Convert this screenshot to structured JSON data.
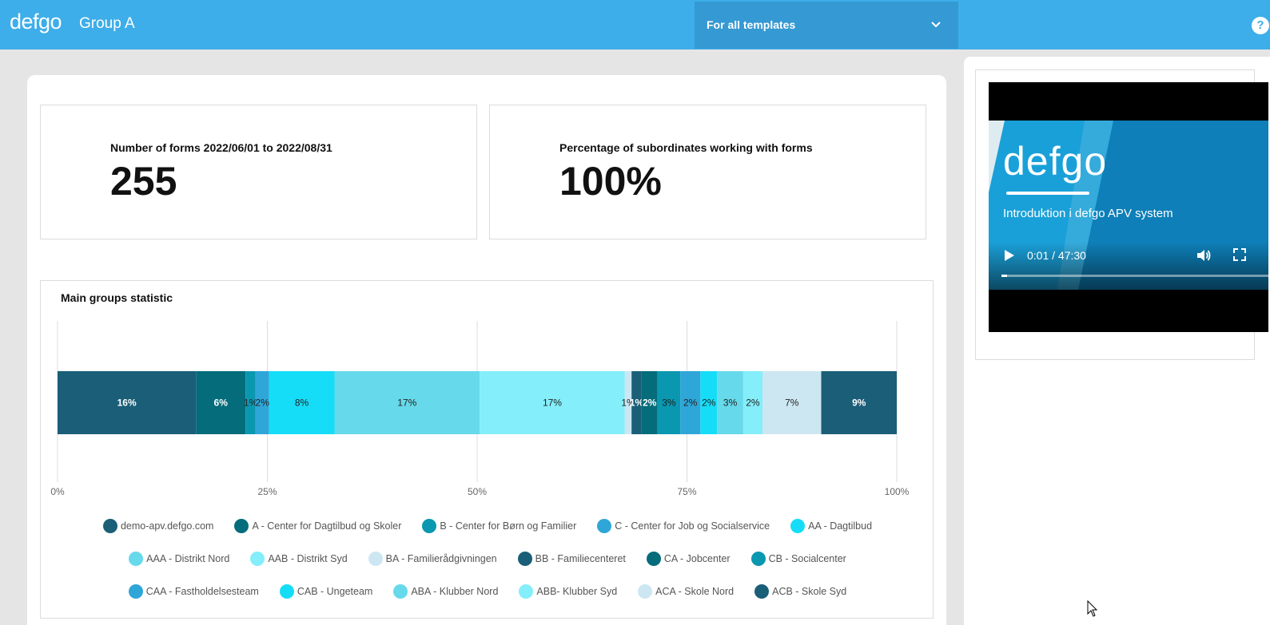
{
  "header": {
    "logo": "defgo",
    "group_title": "Group A",
    "template_select": "For all templates",
    "help": "?"
  },
  "stats": [
    {
      "label": "Number of forms 2022/06/01 to 2022/08/31",
      "value": "255"
    },
    {
      "label": "Percentage of subordinates working with forms",
      "value": "100%"
    }
  ],
  "chart_data": {
    "type": "bar",
    "orientation": "horizontal-stacked",
    "title": "Main groups statistic",
    "xlim": [
      0,
      100
    ],
    "x_ticks": [
      "0%",
      "25%",
      "50%",
      "75%",
      "100%"
    ],
    "grid": true,
    "legend_placement": "bottom",
    "series": [
      {
        "name": "demo-apv.defgo.com",
        "value": 16.5,
        "label": "16%",
        "color": "#1b5e78"
      },
      {
        "name": "A - Center for Dagtilbud og Skoler",
        "value": 5.9,
        "label": "6%",
        "color": "#046c7a"
      },
      {
        "name": "B - Center for Børn og Familier",
        "value": 1.2,
        "label": "1%",
        "color": "#0a97b0"
      },
      {
        "name": "C - Center for Job og Socialservice",
        "value": 1.6,
        "label": "2%",
        "color": "#2fa6d8"
      },
      {
        "name": "AA - Dagtilbud",
        "value": 7.8,
        "label": "8%",
        "color": "#16ddf7"
      },
      {
        "name": "AAA - Distrikt Nord",
        "value": 17.3,
        "label": "17%",
        "color": "#66d9ea"
      },
      {
        "name": "AAB - Distrikt Syd",
        "value": 17.3,
        "label": "17%",
        "color": "#84eefa"
      },
      {
        "name": "BA - Familierådgivningen",
        "value": 0.8,
        "label": "1%",
        "color": "#cde7f2"
      },
      {
        "name": "BB - Familiecenteret",
        "value": 1.2,
        "label": "1%",
        "color": "#1b5e78"
      },
      {
        "name": "CA - Jobcenter",
        "value": 1.9,
        "label": "2%",
        "color": "#046c7a"
      },
      {
        "name": "CB - Socialcenter",
        "value": 2.7,
        "label": "3%",
        "color": "#0a97b0"
      },
      {
        "name": "CAA - Fastholdelsesteam",
        "value": 2.4,
        "label": "2%",
        "color": "#2fa6d8"
      },
      {
        "name": "CAB - Ungeteam",
        "value": 2.0,
        "label": "2%",
        "color": "#16ddf7"
      },
      {
        "name": "ABA - Klubber Nord",
        "value": 3.1,
        "label": "3%",
        "color": "#66d9ea"
      },
      {
        "name": "ABB- Klubber Syd",
        "value": 2.3,
        "label": "2%",
        "color": "#84eefa"
      },
      {
        "name": "ACA - Skole Nord",
        "value": 7.0,
        "label": "7%",
        "color": "#cde7f2"
      },
      {
        "name": "ACB - Skole Syd",
        "value": 9.0,
        "label": "9%",
        "color": "#1b5e78"
      }
    ]
  },
  "video": {
    "brand": "defgo",
    "subtitle": "Introduktion i defgo APV system",
    "time": "0:01 / 47:30",
    "progress": 0.02
  },
  "icons": {
    "template_chevron": "chevron-down-icon",
    "help": "help-icon",
    "play": "play-icon",
    "volume": "volume-icon",
    "fullscreen": "fullscreen-icon",
    "cursor": "mouse-cursor-icon"
  }
}
